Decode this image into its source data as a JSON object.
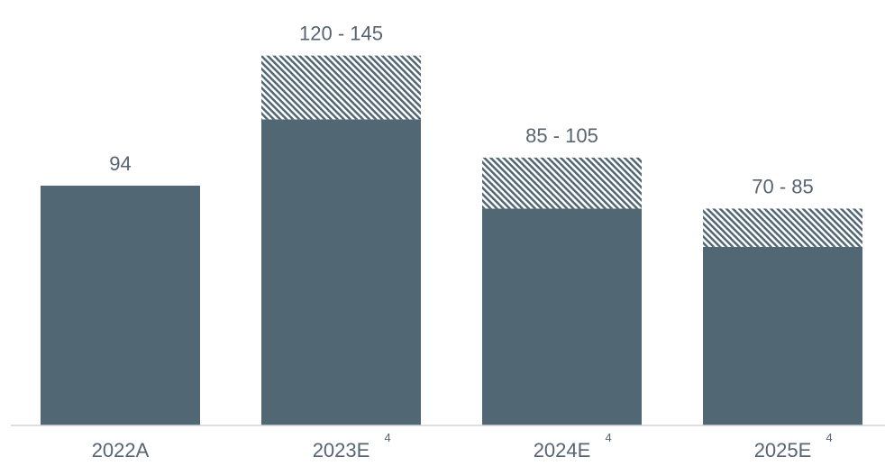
{
  "chart_data": {
    "type": "bar",
    "categories": [
      "2022A",
      "2023E",
      "2024E",
      "2025E"
    ],
    "footnote_marks": [
      "",
      "4",
      "4",
      "4"
    ],
    "series": [
      {
        "values": [
          94,
          120,
          85,
          70
        ]
      },
      {
        "values": [
          0,
          25,
          20,
          15
        ]
      }
    ],
    "data_labels": [
      "94",
      "120 - 145",
      "85 - 105",
      "70 - 85"
    ],
    "ylim": [
      0,
      160
    ],
    "grid": false,
    "legend": "none",
    "colors": {
      "bar": "#526774",
      "hatch": "#526774",
      "axis": "#cfd4d9",
      "text": "#566473"
    }
  }
}
